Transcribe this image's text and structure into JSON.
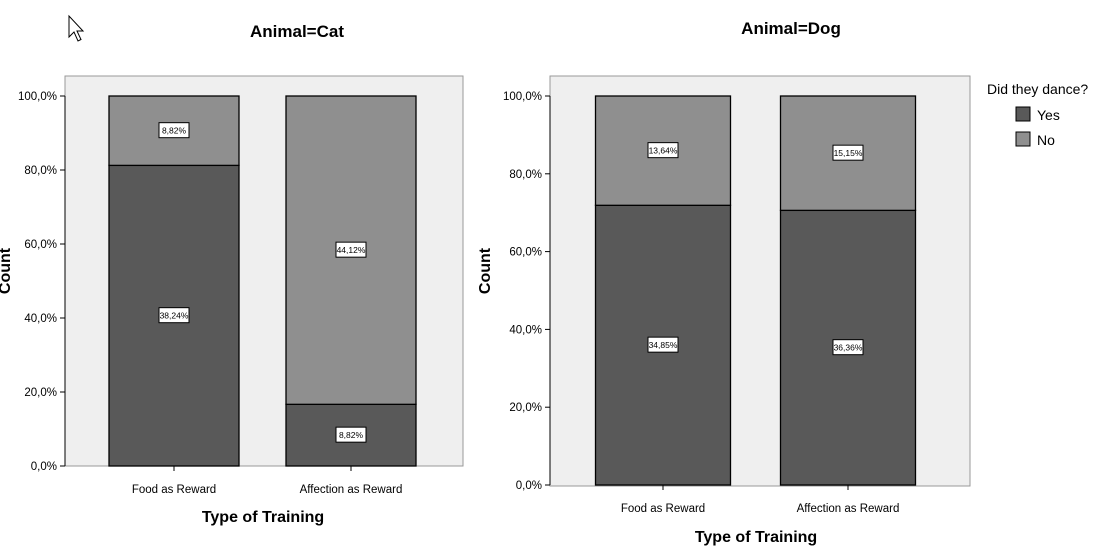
{
  "chart_data": [
    {
      "type": "bar",
      "stacked": true,
      "title": "Animal=Cat",
      "xlabel": "Type of Training",
      "ylabel": "Count",
      "ylim": [
        0,
        100
      ],
      "yticks": [
        "0,0%",
        "20,0%",
        "40,0%",
        "60,0%",
        "80,0%",
        "100,0%"
      ],
      "categories": [
        "Food as Reward",
        "Affection as Reward"
      ],
      "series": [
        {
          "name": "Yes",
          "values": [
            81.25,
            16.67
          ],
          "labels": [
            "38,24%",
            "8,82%"
          ]
        },
        {
          "name": "No",
          "values": [
            18.75,
            83.33
          ],
          "labels": [
            "8,82%",
            "44,12%"
          ]
        }
      ],
      "grid": false
    },
    {
      "type": "bar",
      "stacked": true,
      "title": "Animal=Dog",
      "xlabel": "Type of Training",
      "ylabel": "Count",
      "ylim": [
        0,
        100
      ],
      "yticks": [
        "0,0%",
        "20,0%",
        "40,0%",
        "60,0%",
        "80,0%",
        "100,0%"
      ],
      "categories": [
        "Food as Reward",
        "Affection as Reward"
      ],
      "series": [
        {
          "name": "Yes",
          "values": [
            71.9,
            70.6
          ],
          "labels": [
            "34,85%",
            "36,36%"
          ]
        },
        {
          "name": "No",
          "values": [
            28.1,
            29.4
          ],
          "labels": [
            "13,64%",
            "15,15%"
          ]
        }
      ],
      "grid": false
    }
  ],
  "legend": {
    "title": "Did they dance?",
    "items": [
      {
        "name": "Yes",
        "color": "#595959"
      },
      {
        "name": "No",
        "color": "#8f8f8f"
      }
    ],
    "placement": "right"
  },
  "colors": {
    "Yes": "#595959",
    "No": "#8f8f8f",
    "plot_bg": "#efefef"
  }
}
